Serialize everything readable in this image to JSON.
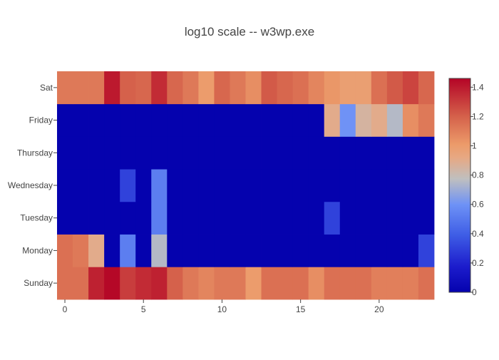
{
  "chart_data": {
    "type": "heatmap",
    "title": "log10 scale -- w3wp.exe",
    "x": [
      0,
      1,
      2,
      3,
      4,
      5,
      6,
      7,
      8,
      9,
      10,
      11,
      12,
      13,
      14,
      15,
      16,
      17,
      18,
      19,
      20,
      21,
      22,
      23
    ],
    "x_ticks": [
      0,
      5,
      10,
      15,
      20
    ],
    "y": [
      "Sunday",
      "Monday",
      "Tuesday",
      "Wednesday",
      "Thursday",
      "Friday",
      "Sat"
    ],
    "z": [
      [
        1.15,
        1.15,
        1.38,
        1.45,
        1.3,
        1.35,
        1.38,
        1.2,
        1.12,
        1.08,
        1.12,
        1.12,
        1.0,
        1.15,
        1.15,
        1.15,
        1.05,
        1.15,
        1.15,
        1.15,
        1.1,
        1.1,
        1.1,
        1.15
      ],
      [
        1.15,
        1.12,
        0.9,
        0,
        0.52,
        0,
        0.75,
        0,
        0,
        0,
        0,
        0,
        0,
        0,
        0,
        0,
        0,
        0,
        0,
        0,
        0,
        0,
        0,
        0.3
      ],
      [
        0,
        0,
        0,
        0,
        0,
        0,
        0.52,
        0,
        0,
        0,
        0,
        0,
        0,
        0,
        0,
        0,
        0,
        0.3,
        0,
        0,
        0,
        0,
        0,
        0
      ],
      [
        0,
        0,
        0,
        0,
        0.3,
        0,
        0.52,
        0,
        0,
        0,
        0,
        0,
        0,
        0,
        0,
        0,
        0,
        0,
        0,
        0,
        0,
        0,
        0,
        0
      ],
      [
        0,
        0,
        0,
        0,
        0,
        0,
        0,
        0,
        0,
        0,
        0,
        0,
        0,
        0,
        0,
        0,
        0,
        0,
        0,
        0,
        0,
        0,
        0,
        0
      ],
      [
        0,
        0,
        0,
        0,
        0,
        0,
        0,
        0,
        0,
        0,
        0,
        0,
        0,
        0,
        0,
        0,
        0,
        0.9,
        0.6,
        0.85,
        0.9,
        0.75,
        1.05,
        1.12
      ],
      [
        1.12,
        1.12,
        1.12,
        1.4,
        1.2,
        1.18,
        1.35,
        1.18,
        1.12,
        1.0,
        1.18,
        1.12,
        1.05,
        1.22,
        1.18,
        1.15,
        1.08,
        1.02,
        0.98,
        0.98,
        1.15,
        1.22,
        1.28,
        1.18
      ]
    ],
    "zmin": 0,
    "zmax": 1.46,
    "colorscale": "coolwarm",
    "colorbar": {
      "ticks": [
        0,
        0.2,
        0.4,
        0.6,
        0.8,
        1,
        1.2,
        1.4
      ],
      "labels": [
        "0",
        "0.2",
        "0.4",
        "0.6",
        "0.8",
        "1",
        "1.2",
        "1.4"
      ]
    },
    "grid": false
  }
}
